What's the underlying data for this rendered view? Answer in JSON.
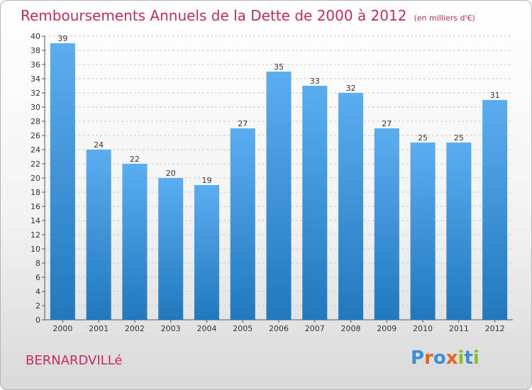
{
  "title": "Remboursements Annuels de la Dette de 2000 à 2012",
  "unit_label": "(en milliers d'€)",
  "city": "BERNARDVILLé",
  "logo": {
    "text": "Proxiti",
    "letters": [
      {
        "ch": "P",
        "color": "#3a8fd6"
      },
      {
        "ch": "r",
        "color": "#e0661a"
      },
      {
        "ch": "o",
        "color": "#3a8fd6"
      },
      {
        "ch": "x",
        "color": "#e0661a"
      },
      {
        "ch": "i",
        "color": "#8cbf26"
      },
      {
        "ch": "t",
        "color": "#3a8fd6"
      },
      {
        "ch": "i",
        "color": "#8cbf26"
      }
    ]
  },
  "colors": {
    "title": "#c72a63",
    "bar_top": "#5aaef0",
    "bar_bottom": "#2278bd",
    "grid": "#c8c8c8"
  },
  "chart_data": {
    "type": "bar",
    "categories": [
      "2000",
      "2001",
      "2002",
      "2003",
      "2004",
      "2005",
      "2006",
      "2007",
      "2008",
      "2009",
      "2010",
      "2011",
      "2012"
    ],
    "values": [
      39,
      24,
      22,
      20,
      19,
      27,
      35,
      33,
      32,
      27,
      25,
      25,
      31
    ],
    "ylim": [
      0,
      40
    ],
    "yticks": [
      0,
      2,
      4,
      6,
      8,
      10,
      12,
      14,
      16,
      18,
      20,
      22,
      24,
      26,
      28,
      30,
      32,
      34,
      36,
      38,
      40
    ],
    "grid": true
  }
}
